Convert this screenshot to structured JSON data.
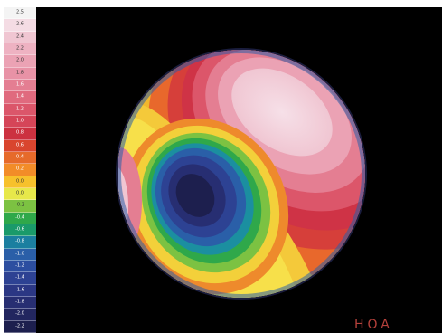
{
  "scale": {
    "levels": [
      {
        "label": "2.5",
        "color": "#f4f4f4"
      },
      {
        "label": "2.6",
        "color": "#f4dce4"
      },
      {
        "label": "2.4",
        "color": "#f0c6d2"
      },
      {
        "label": "2.2",
        "color": "#eeb2c2"
      },
      {
        "label": "2.0",
        "color": "#eba2b4"
      },
      {
        "label": "1.8",
        "color": "#e892a6"
      },
      {
        "label": "1.6",
        "color": "#e47e92"
      },
      {
        "label": "1.4",
        "color": "#e06a7e"
      },
      {
        "label": "1.2",
        "color": "#db566a"
      },
      {
        "label": "1.0",
        "color": "#d54558"
      },
      {
        "label": "0.8",
        "color": "#cc3140"
      },
      {
        "label": "0.6",
        "color": "#d9452e"
      },
      {
        "label": "0.4",
        "color": "#e66a2a"
      },
      {
        "label": "0.2",
        "color": "#f28c28"
      },
      {
        "label": "0.0",
        "color": "#f7c12b"
      },
      {
        "label": "0.0",
        "color": "#e7e84a"
      },
      {
        "label": "-0.2",
        "color": "#7cc242"
      },
      {
        "label": "-0.4",
        "color": "#2fa84a"
      },
      {
        "label": "-0.6",
        "color": "#1a9a6a"
      },
      {
        "label": "-0.8",
        "color": "#1b7fa0"
      },
      {
        "label": "-1.0",
        "color": "#2a5fa8"
      },
      {
        "label": "-1.2",
        "color": "#2c4ea0"
      },
      {
        "label": "-1.4",
        "color": "#2d4293"
      },
      {
        "label": "-1.6",
        "color": "#2b3784"
      },
      {
        "label": "-1.8",
        "color": "#272e72"
      },
      {
        "label": "-2.0",
        "color": "#22265f"
      },
      {
        "label": "-2.2",
        "color": "#1d1f4e"
      }
    ]
  },
  "label": "HOA"
}
